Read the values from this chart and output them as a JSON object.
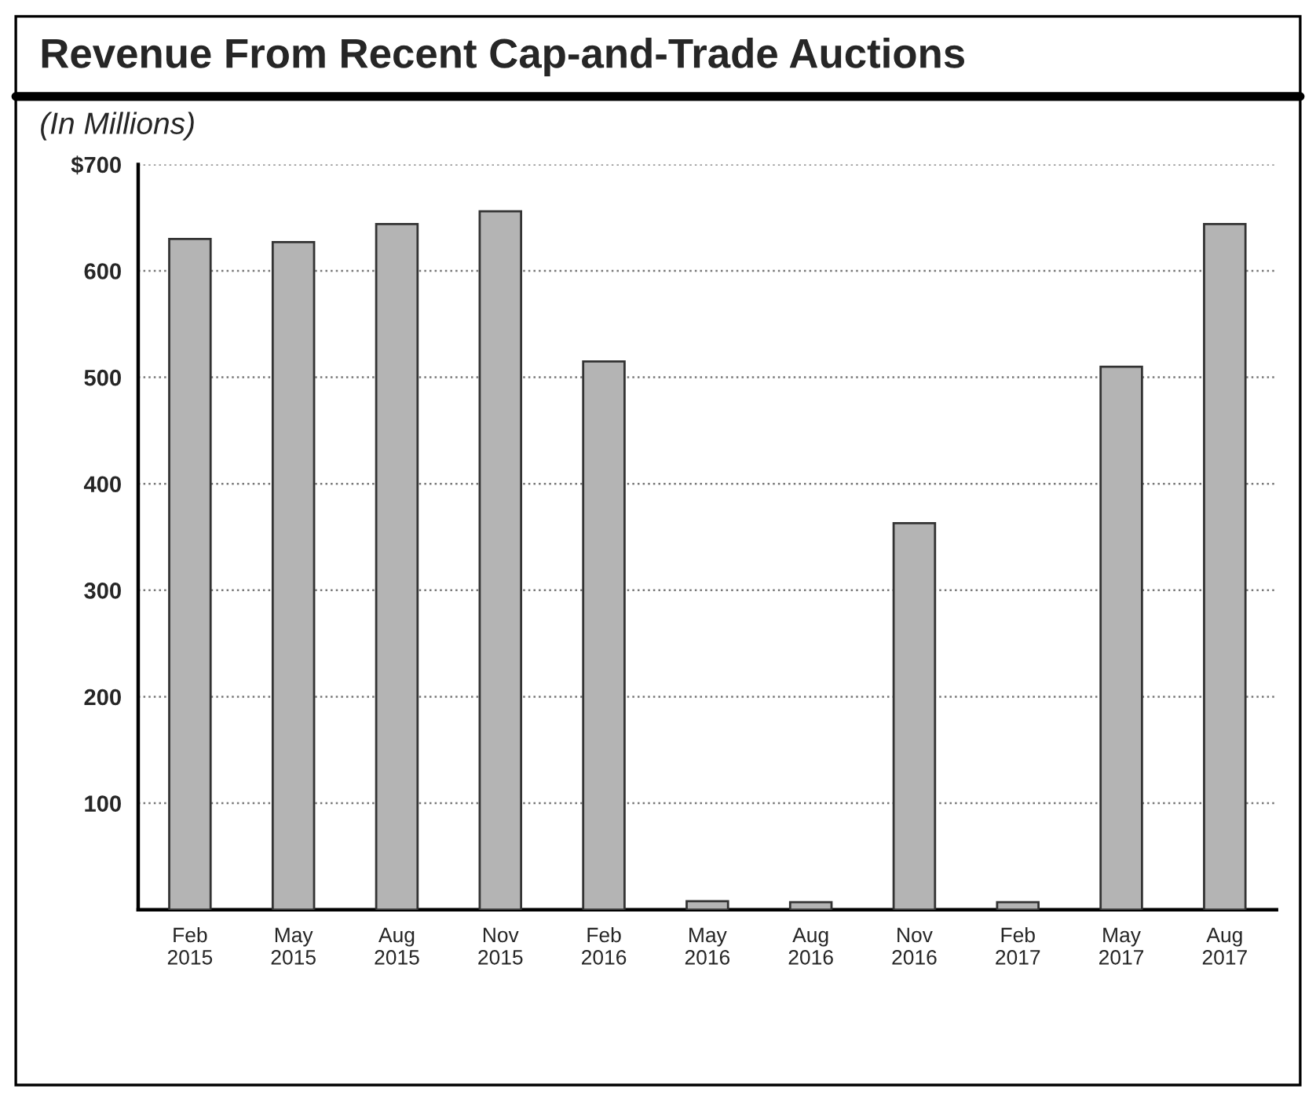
{
  "chart_data": {
    "type": "bar",
    "title": "Revenue From Recent Cap-and-Trade Auctions",
    "subtitle": "(In Millions)",
    "categories": [
      "Feb\n2015",
      "May\n2015",
      "Aug\n2015",
      "Nov\n2015",
      "Feb\n2016",
      "May\n2016",
      "Aug\n2016",
      "Nov\n2016",
      "Feb\n2017",
      "May\n2017",
      "Aug\n2017"
    ],
    "values": [
      630,
      627,
      644,
      656,
      515,
      8,
      7,
      363,
      7,
      510,
      644
    ],
    "color": "#b4b4b4",
    "ylim": [
      0,
      700
    ],
    "yticks": [
      {
        "value": 0,
        "label": null
      },
      100,
      200,
      300,
      400,
      500,
      600,
      {
        "value": 700,
        "label": "$700"
      }
    ],
    "grid": "y"
  }
}
